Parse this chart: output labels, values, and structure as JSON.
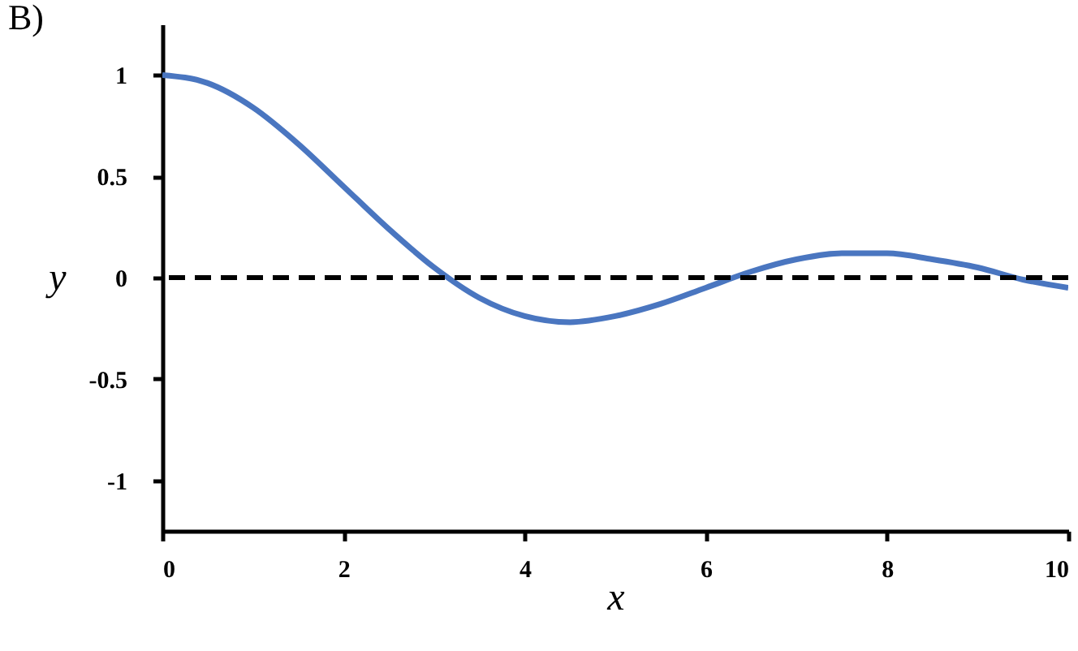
{
  "chart_data": {
    "type": "line",
    "title": "B)",
    "xlabel": "x",
    "ylabel": "y",
    "x": [
      0,
      0.5,
      1,
      1.5,
      2,
      2.5,
      3,
      3.5,
      4,
      4.5,
      5,
      5.5,
      6,
      6.5,
      7,
      7.5,
      8,
      8.5,
      9,
      9.5,
      10
    ],
    "series": [
      {
        "color": "#4a76c0",
        "values": [
          1,
          0.96,
          0.84,
          0.66,
          0.45,
          0.24,
          0.05,
          -0.1,
          -0.19,
          -0.22,
          -0.19,
          -0.13,
          -0.05,
          0.03,
          0.09,
          0.12,
          0.12,
          0.09,
          0.05,
          -0.01,
          -0.05
        ]
      }
    ],
    "xlim": [
      0,
      10
    ],
    "xticks": [
      0,
      2,
      4,
      6,
      8,
      10
    ],
    "ylim": [
      -1.25,
      1.25
    ],
    "yticks": [
      -1,
      -0.5,
      0,
      0.5,
      1
    ],
    "ref_lines": [
      {
        "axis": "y",
        "value": 0,
        "color": "#000000",
        "line_style": "dashed"
      }
    ],
    "grid": false,
    "marker": "none",
    "line_style": "solid"
  }
}
